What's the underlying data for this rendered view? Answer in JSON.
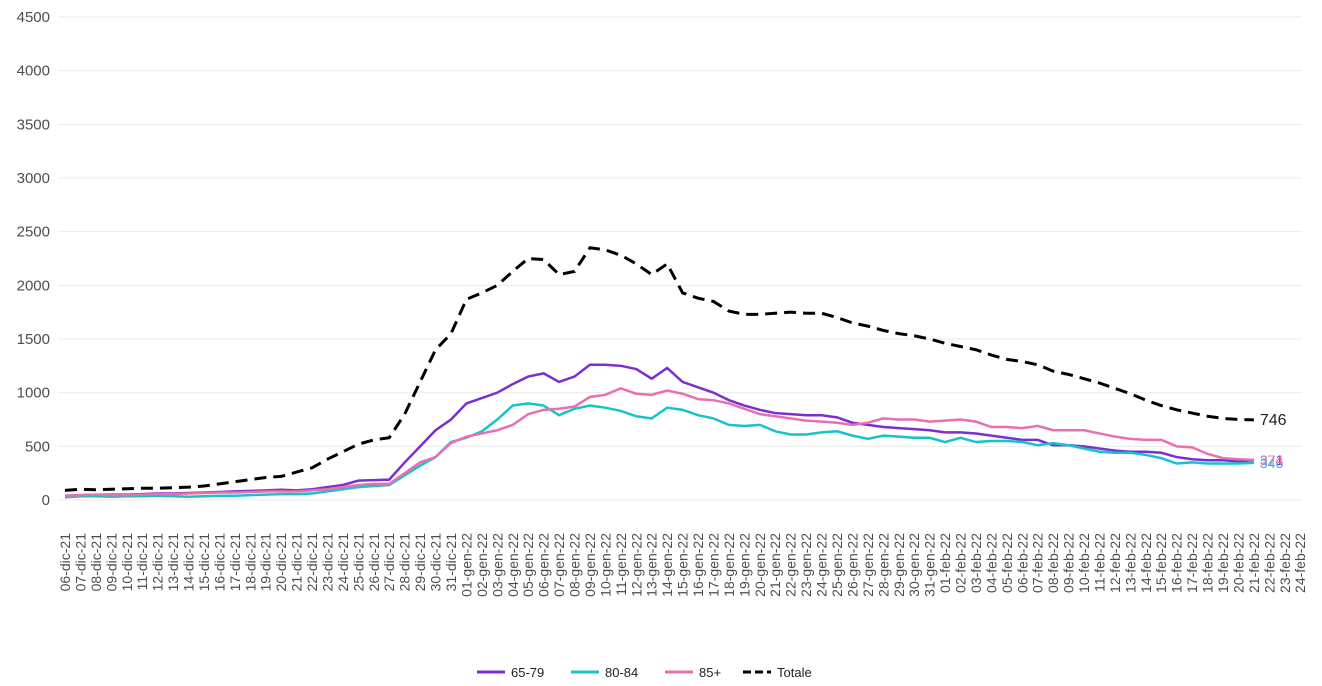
{
  "chart_data": {
    "type": "line",
    "categories": [
      "06-dic-21",
      "07-dic-21",
      "08-dic-21",
      "09-dic-21",
      "10-dic-21",
      "11-dic-21",
      "12-dic-21",
      "13-dic-21",
      "14-dic-21",
      "15-dic-21",
      "16-dic-21",
      "17-dic-21",
      "18-dic-21",
      "19-dic-21",
      "20-dic-21",
      "21-dic-21",
      "22-dic-21",
      "23-dic-21",
      "24-dic-21",
      "25-dic-21",
      "26-dic-21",
      "27-dic-21",
      "28-dic-21",
      "29-dic-21",
      "30-dic-21",
      "31-dic-21",
      "01-gen-22",
      "02-gen-22",
      "03-gen-22",
      "04-gen-22",
      "05-gen-22",
      "06-gen-22",
      "07-gen-22",
      "08-gen-22",
      "09-gen-22",
      "10-gen-22",
      "11-gen-22",
      "12-gen-22",
      "13-gen-22",
      "14-gen-22",
      "15-gen-22",
      "16-gen-22",
      "17-gen-22",
      "18-gen-22",
      "19-gen-22",
      "20-gen-22",
      "21-gen-22",
      "22-gen-22",
      "23-gen-22",
      "24-gen-22",
      "25-gen-22",
      "26-gen-22",
      "27-gen-22",
      "28-gen-22",
      "29-gen-22",
      "30-gen-22",
      "31-gen-22",
      "01-feb-22",
      "02-feb-22",
      "03-feb-22",
      "04-feb-22",
      "05-feb-22",
      "06-feb-22",
      "07-feb-22",
      "08-feb-22",
      "09-feb-22",
      "10-feb-22",
      "11-feb-22",
      "12-feb-22",
      "13-feb-22",
      "14-feb-22",
      "15-feb-22",
      "16-feb-22",
      "17-feb-22",
      "18-feb-22",
      "19-feb-22",
      "20-feb-22",
      "21-feb-22",
      "22-feb-22",
      "23-feb-22",
      "24-feb-22"
    ],
    "series": [
      {
        "name": "65-79",
        "color": "#7b2fd1",
        "dashed": false,
        "values": [
          40,
          45,
          50,
          50,
          50,
          55,
          60,
          60,
          65,
          70,
          75,
          80,
          85,
          90,
          95,
          90,
          100,
          120,
          140,
          180,
          185,
          190,
          350,
          500,
          650,
          750,
          900,
          950,
          1000,
          1080,
          1150,
          1180,
          1100,
          1150,
          1260,
          1260,
          1250,
          1220,
          1130,
          1230,
          1100,
          1050,
          1000,
          930,
          880,
          840,
          810,
          800,
          790,
          790,
          770,
          720,
          700,
          680,
          670,
          660,
          650,
          630,
          630,
          620,
          600,
          580,
          560,
          560,
          510,
          510,
          500,
          480,
          460,
          450,
          450,
          440,
          400,
          380,
          370,
          370,
          360,
          371,
          null,
          null,
          null
        ]
      },
      {
        "name": "80-84",
        "color": "#17c3c9",
        "dashed": false,
        "values": [
          25,
          35,
          35,
          30,
          35,
          35,
          40,
          35,
          30,
          35,
          40,
          40,
          45,
          50,
          55,
          55,
          60,
          80,
          100,
          120,
          130,
          140,
          230,
          320,
          400,
          540,
          580,
          640,
          750,
          880,
          900,
          880,
          790,
          850,
          880,
          860,
          830,
          780,
          760,
          860,
          840,
          790,
          760,
          700,
          690,
          700,
          640,
          610,
          610,
          630,
          640,
          600,
          570,
          600,
          590,
          580,
          580,
          540,
          580,
          540,
          550,
          550,
          540,
          510,
          530,
          510,
          480,
          450,
          440,
          440,
          420,
          390,
          340,
          350,
          340,
          340,
          340,
          346,
          null,
          null,
          null
        ]
      },
      {
        "name": "85+",
        "color": "#e86fb0",
        "dashed": false,
        "values": [
          40,
          45,
          50,
          45,
          45,
          50,
          55,
          55,
          60,
          65,
          70,
          70,
          75,
          80,
          80,
          80,
          90,
          100,
          120,
          140,
          150,
          150,
          250,
          350,
          400,
          530,
          590,
          620,
          650,
          700,
          800,
          840,
          850,
          870,
          960,
          980,
          1040,
          990,
          980,
          1020,
          990,
          940,
          930,
          900,
          850,
          800,
          780,
          760,
          740,
          730,
          720,
          700,
          720,
          760,
          750,
          750,
          730,
          740,
          750,
          730,
          680,
          680,
          670,
          690,
          650,
          650,
          650,
          620,
          590,
          570,
          560,
          560,
          500,
          490,
          430,
          390,
          380,
          374,
          null,
          null,
          null
        ]
      },
      {
        "name": "Totale",
        "color": "#000000",
        "dashed": true,
        "values": [
          90,
          100,
          95,
          100,
          105,
          110,
          110,
          115,
          120,
          130,
          150,
          170,
          190,
          210,
          220,
          260,
          300,
          380,
          450,
          520,
          560,
          580,
          800,
          1100,
          1400,
          1550,
          1870,
          1930,
          2000,
          2130,
          2250,
          2240,
          2100,
          2130,
          2350,
          2330,
          2280,
          2200,
          2100,
          2200,
          1930,
          1880,
          1850,
          1760,
          1730,
          1730,
          1740,
          1750,
          1740,
          1740,
          1700,
          1650,
          1620,
          1580,
          1550,
          1530,
          1500,
          1460,
          1430,
          1400,
          1350,
          1310,
          1290,
          1260,
          1200,
          1170,
          1130,
          1090,
          1040,
          990,
          930,
          880,
          840,
          810,
          780,
          760,
          750,
          746,
          null,
          null,
          null
        ]
      }
    ],
    "ylim": [
      0,
      4500
    ],
    "yticks": [
      0,
      500,
      1000,
      1500,
      2000,
      2500,
      3000,
      3500,
      4000,
      4500
    ],
    "grid": true,
    "legend": "bottom"
  }
}
